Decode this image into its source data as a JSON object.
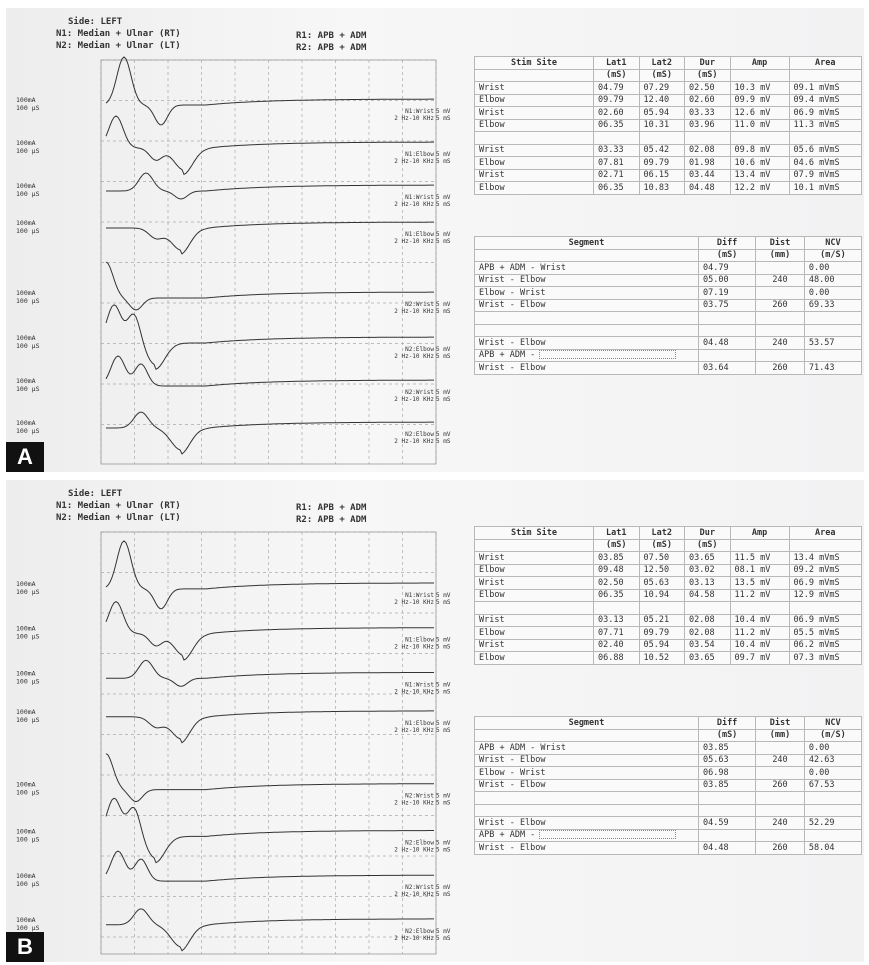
{
  "panels": [
    {
      "label": "A",
      "header": {
        "side": "Side: LEFT",
        "n1": "N1: Median + Ulnar  (RT)",
        "n2": "N2: Median + Ulnar  (LT)",
        "r1": "R1: APB  + ADM",
        "r2": "R2: APB  + ADM"
      },
      "traces": [
        {
          "stim": "100mA",
          "time": "100 µS",
          "site": "N1:Wrist",
          "sens": "5 mV",
          "filter": "2 Hz-10 KHz",
          "sweep": "5 mS"
        },
        {
          "stim": "100mA",
          "time": "100 µS",
          "site": "N1:Elbow",
          "sens": "5 mV",
          "filter": "2 Hz-10 KHz",
          "sweep": "5 mS"
        },
        {
          "stim": "100mA",
          "time": "100 µS",
          "site": "N1:Wrist",
          "sens": "5 mV",
          "filter": "2 Hz-10 KHz",
          "sweep": "5 mS"
        },
        {
          "stim": "100mA",
          "time": "100 µS",
          "site": "N1:Elbow",
          "sens": "5 mV",
          "filter": "2 Hz-10 KHz",
          "sweep": "5 mS"
        },
        {
          "stim": "100mA",
          "time": "100 µS",
          "site": "N2:Wrist",
          "sens": "5 mV",
          "filter": "2 Hz-10 KHz",
          "sweep": "5 mS"
        },
        {
          "stim": "100mA",
          "time": "100 µS",
          "site": "N2:Elbow",
          "sens": "5 mV",
          "filter": "2 Hz-10 KHz",
          "sweep": "5 mS"
        },
        {
          "stim": "100mA",
          "time": "100 µS",
          "site": "N2:Wrist",
          "sens": "5 mV",
          "filter": "2 Hz-10 KHz",
          "sweep": "5 mS"
        },
        {
          "stim": "100mA",
          "time": "100 µS",
          "site": "N2:Elbow",
          "sens": "5 mV",
          "filter": "2 Hz-10 KHz",
          "sweep": "5 mS"
        }
      ],
      "stim_table": {
        "columns": [
          {
            "name": "Stim Site"
          },
          {
            "name": "Lat1",
            "unit": "(mS)"
          },
          {
            "name": "Lat2",
            "unit": "(mS)"
          },
          {
            "name": "Dur",
            "unit": "(mS)"
          },
          {
            "name": "Amp"
          },
          {
            "name": "Area"
          }
        ],
        "groups": [
          [
            [
              "Wrist",
              "04.79",
              "07.29",
              "02.50",
              "10.3 mV",
              "09.1 mVmS"
            ],
            [
              "Elbow",
              "09.79",
              "12.40",
              "02.60",
              "09.9 mV",
              "09.4 mVmS"
            ],
            [
              "Wrist",
              "02.60",
              "05.94",
              "03.33",
              "12.6 mV",
              "06.9 mVmS"
            ],
            [
              "Elbow",
              "06.35",
              "10.31",
              "03.96",
              "11.0 mV",
              "11.3 mVmS"
            ]
          ],
          [
            [
              "Wrist",
              "03.33",
              "05.42",
              "02.08",
              "09.8 mV",
              "05.6 mVmS"
            ],
            [
              "Elbow",
              "07.81",
              "09.79",
              "01.98",
              "10.6 mV",
              "04.6 mVmS"
            ],
            [
              "Wrist",
              "02.71",
              "06.15",
              "03.44",
              "13.4 mV",
              "07.9 mVmS"
            ],
            [
              "Elbow",
              "06.35",
              "10.83",
              "04.48",
              "12.2 mV",
              "10.1 mVmS"
            ]
          ]
        ]
      },
      "segment_table": {
        "columns": [
          {
            "name": "Segment"
          },
          {
            "name": "Diff",
            "unit": "(mS)"
          },
          {
            "name": "Dist",
            "unit": "(mm)"
          },
          {
            "name": "NCV",
            "unit": "(m/S)"
          }
        ],
        "groups": [
          [
            {
              "segment": "APB  + ADM - Wrist",
              "diff": "04.79",
              "ncv": "0.00"
            },
            {
              "segment": "Wrist - Elbow",
              "diff": "05.00",
              "dist": "240",
              "ncv": "48.00"
            },
            {
              "segment": "Elbow - Wrist",
              "diff": "07.19",
              "ncv": "0.00"
            },
            {
              "segment": "Wrist - Elbow",
              "diff": "03.75",
              "dist": "260",
              "ncv": "69.33"
            }
          ],
          [
            {
              "segment": "Wrist - Elbow",
              "diff": "04.48",
              "dist": "240",
              "ncv": "53.57"
            },
            {
              "segment": "APB + ADM -"
            },
            {
              "segment": "Wrist - Elbow",
              "diff": "03.64",
              "dist": "260",
              "ncv": "71.43"
            }
          ]
        ]
      }
    },
    {
      "label": "B",
      "header": {
        "side": "Side: LEFT",
        "n1": "N1: Median + Ulnar  (RT)",
        "n2": "N2: Median + Ulnar  (LT)",
        "r1": "R1: APB  + ADM",
        "r2": "R2: APB  + ADM"
      },
      "traces": [
        {
          "stim": "100mA",
          "time": "100 µS",
          "site": "N1:Wrist",
          "sens": "5 mV",
          "filter": "2 Hz-10 KHz",
          "sweep": "5 mS"
        },
        {
          "stim": "100mA",
          "time": "100 µS",
          "site": "N1:Elbow",
          "sens": "5 mV",
          "filter": "2 Hz-10 KHz",
          "sweep": "5 mS"
        },
        {
          "stim": "100mA",
          "time": "100 µS",
          "site": "N1:Wrist",
          "sens": "5 mV",
          "filter": "2 Hz-10 KHz",
          "sweep": "5 mS"
        },
        {
          "stim": "100mA",
          "time": "100 µS",
          "site": "N1:Elbow",
          "sens": "5 mV",
          "filter": "2 Hz-10 KHz",
          "sweep": "5 mS"
        },
        {
          "stim": "100mA",
          "time": "100 µS",
          "site": "N2:Wrist",
          "sens": "5 mV",
          "filter": "2 Hz-10 KHz",
          "sweep": "5 mS"
        },
        {
          "stim": "100mA",
          "time": "100 µS",
          "site": "N2:Elbow",
          "sens": "5 mV",
          "filter": "2 Hz-10 KHz",
          "sweep": "5 mS"
        },
        {
          "stim": "100mA",
          "time": "100 µS",
          "site": "N2:Wrist",
          "sens": "5 mV",
          "filter": "2 Hz-10 KHz",
          "sweep": "5 mS"
        },
        {
          "stim": "100mA",
          "time": "100 µS",
          "site": "N2:Elbow",
          "sens": "5 mV",
          "filter": "2 Hz-10 KHz",
          "sweep": "5 mS"
        }
      ],
      "stim_table": {
        "columns": [
          {
            "name": "Stim Site"
          },
          {
            "name": "Lat1",
            "unit": "(mS)"
          },
          {
            "name": "Lat2",
            "unit": "(mS)"
          },
          {
            "name": "Dur",
            "unit": "(mS)"
          },
          {
            "name": "Amp"
          },
          {
            "name": "Area"
          }
        ],
        "groups": [
          [
            [
              "Wrist",
              "03.85",
              "07.50",
              "03.65",
              "11.5 mV",
              "13.4 mVmS"
            ],
            [
              "Elbow",
              "09.48",
              "12.50",
              "03.02",
              "08.1 mV",
              "09.2 mVmS"
            ],
            [
              "Wrist",
              "02.50",
              "05.63",
              "03.13",
              "13.5 mV",
              "06.9 mVmS"
            ],
            [
              "Elbow",
              "06.35",
              "10.94",
              "04.58",
              "11.2 mV",
              "12.9 mVmS"
            ]
          ],
          [
            [
              "Wrist",
              "03.13",
              "05.21",
              "02.08",
              "10.4 mV",
              "06.9 mVmS"
            ],
            [
              "Elbow",
              "07.71",
              "09.79",
              "02.08",
              "11.2 mV",
              "05.5 mVmS"
            ],
            [
              "Wrist",
              "02.40",
              "05.94",
              "03.54",
              "10.4 mV",
              "06.2 mVmS"
            ],
            [
              "Elbow",
              "06.88",
              "10.52",
              "03.65",
              "09.7 mV",
              "07.3 mVmS"
            ]
          ]
        ]
      },
      "segment_table": {
        "columns": [
          {
            "name": "Segment"
          },
          {
            "name": "Diff",
            "unit": "(mS)"
          },
          {
            "name": "Dist",
            "unit": "(mm)"
          },
          {
            "name": "NCV",
            "unit": "(m/S)"
          }
        ],
        "groups": [
          [
            {
              "segment": "APB  + ADM - Wrist",
              "diff": "03.85",
              "ncv": "0.00"
            },
            {
              "segment": "Wrist - Elbow",
              "diff": "05.63",
              "dist": "240",
              "ncv": "42.63"
            },
            {
              "segment": "Elbow - Wrist",
              "diff": "06.98",
              "ncv": "0.00"
            },
            {
              "segment": "Wrist - Elbow",
              "diff": "03.85",
              "dist": "260",
              "ncv": "67.53"
            }
          ],
          [
            {
              "segment": "Wrist - Elbow",
              "diff": "04.59",
              "dist": "240",
              "ncv": "52.29"
            },
            {
              "segment": "APB + ADM -"
            },
            {
              "segment": "Wrist - Elbow",
              "diff": "04.48",
              "dist": "260",
              "ncv": "58.04"
            }
          ]
        ]
      }
    }
  ]
}
